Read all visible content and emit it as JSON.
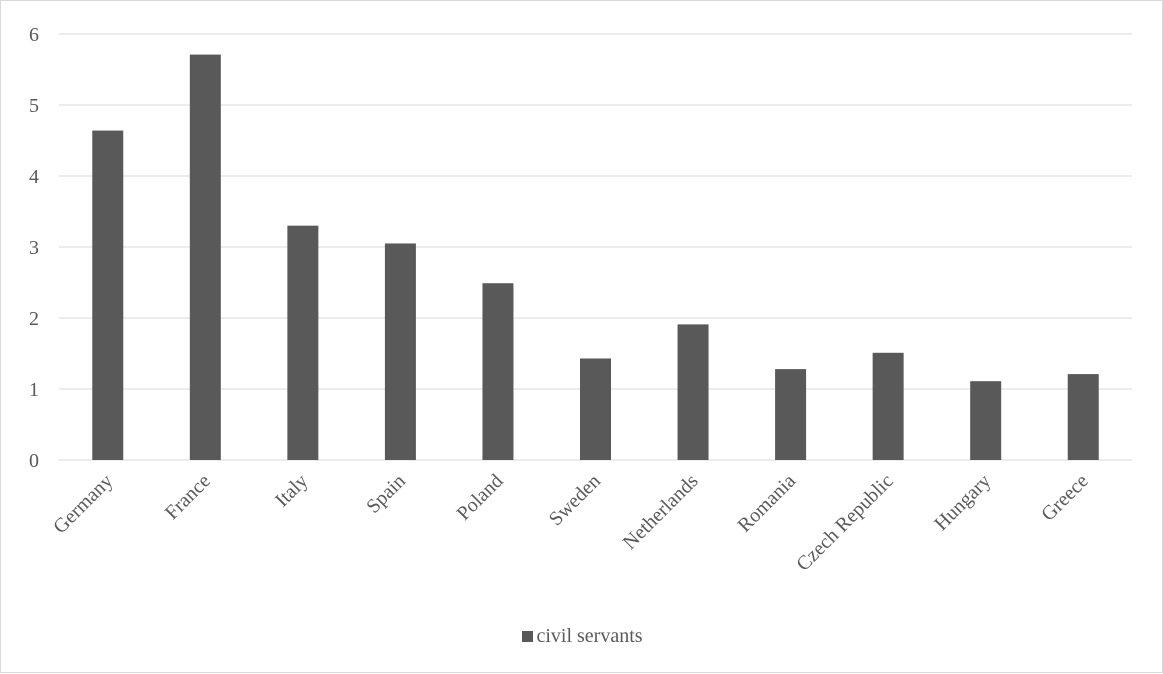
{
  "chart_data": {
    "type": "bar",
    "title": "",
    "xlabel": "",
    "ylabel": "",
    "categories": [
      "Germany",
      "France",
      "Italy",
      "Spain",
      "Poland",
      "Sweden",
      "Netherlands",
      "Romania",
      "Czech Republic",
      "Hungary",
      "Greece"
    ],
    "series": [
      {
        "name": "civil servants",
        "values": [
          4.64,
          5.71,
          3.3,
          3.05,
          2.49,
          1.43,
          1.91,
          1.28,
          1.51,
          1.11,
          1.21
        ],
        "color": "#595959"
      }
    ],
    "ylim": [
      0,
      6
    ],
    "yticks": [
      "0",
      "1",
      "2",
      "3",
      "4",
      "5",
      "6"
    ],
    "grid": true,
    "gridColor": "#d9d9d9",
    "legend": "bottom"
  }
}
